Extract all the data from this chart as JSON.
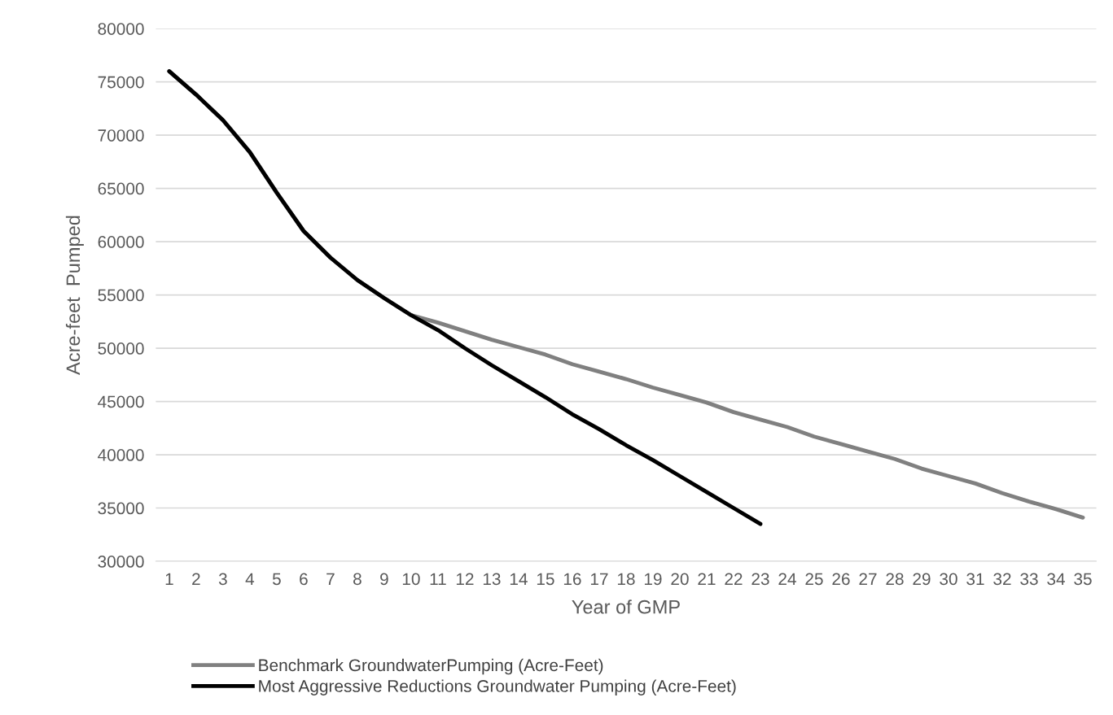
{
  "chart_data": {
    "type": "line",
    "xlabel": "Year of GMP",
    "ylabel": "Acre-feet  Pumped",
    "categories": [
      "1",
      "2",
      "3",
      "4",
      "5",
      "6",
      "7",
      "8",
      "9",
      "10",
      "11",
      "12",
      "13",
      "14",
      "15",
      "16",
      "17",
      "18",
      "19",
      "20",
      "21",
      "22",
      "23",
      "24",
      "25",
      "26",
      "27",
      "28",
      "29",
      "30",
      "31",
      "32",
      "33",
      "34",
      "35"
    ],
    "series": [
      {
        "name": "Benchmark GroundwaterPumping (Acre-Feet)",
        "color": "#808080",
        "values": [
          76000,
          73800,
          71400,
          68400,
          64600,
          61000,
          58500,
          56400,
          54700,
          53100,
          52400,
          51600,
          50800,
          50100,
          49400,
          48500,
          47800,
          47100,
          46300,
          45600,
          44900,
          44000,
          43300,
          42600,
          41700,
          41000,
          40300,
          39600,
          38700,
          38000,
          37300,
          36400,
          35600,
          34900,
          34100
        ]
      },
      {
        "name": "Most Aggressive Reductions Groundwater Pumping (Acre-Feet)",
        "color": "#000000",
        "values": [
          76000,
          73800,
          71400,
          68400,
          64600,
          61000,
          58500,
          56400,
          54700,
          53100,
          51700,
          50000,
          48400,
          46900,
          45400,
          43800,
          42400,
          40900,
          39500,
          38000,
          36500,
          35000,
          33500,
          null,
          null,
          null,
          null,
          null,
          null,
          null,
          null,
          null,
          null,
          null,
          null
        ]
      }
    ],
    "ylim": [
      30000,
      80000
    ],
    "yticks": [
      30000,
      35000,
      40000,
      45000,
      50000,
      55000,
      60000,
      65000,
      70000,
      75000,
      80000
    ],
    "grid": "y",
    "legend": "bottom",
    "marker": "none",
    "line_style": "solid"
  }
}
